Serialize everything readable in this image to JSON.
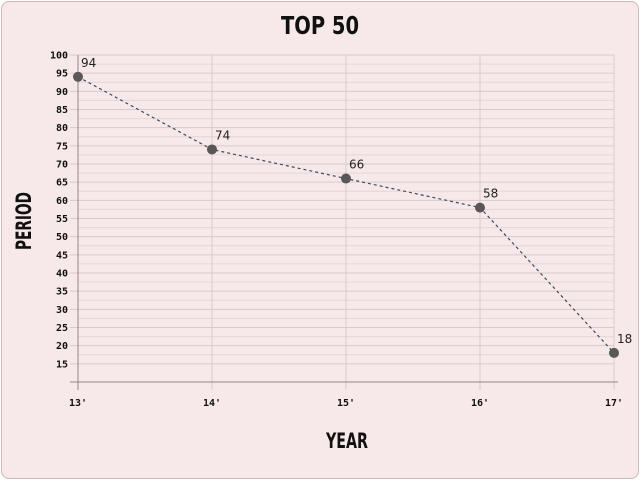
{
  "chart_data": {
    "type": "line",
    "title": "TOP 50",
    "xlabel": "YEAR",
    "ylabel": "PERIOD",
    "categories": [
      "13'",
      "14'",
      "15'",
      "16'",
      "17'"
    ],
    "series": [
      {
        "values": [
          94,
          74,
          66,
          58,
          18
        ]
      }
    ],
    "data_labels": [
      "94",
      "74",
      "66",
      "58",
      "18"
    ],
    "y_ticks": [
      15,
      20,
      25,
      30,
      35,
      40,
      45,
      50,
      55,
      60,
      65,
      70,
      75,
      80,
      85,
      90,
      95,
      100
    ],
    "ylim": [
      10,
      100
    ],
    "grid": true,
    "line_style": "dashed",
    "colors": {
      "background": "#f7e9e9",
      "line": "#3b4a66",
      "marker": "#595757",
      "grid": "#d9c9cc"
    }
  }
}
